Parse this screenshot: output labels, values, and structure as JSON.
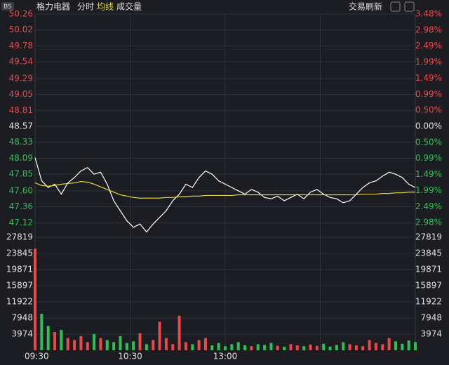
{
  "header": {
    "badge": "BS",
    "stock": "格力电器",
    "tabs": [
      "分时",
      "均线",
      "成交量"
    ],
    "refresh": "交易刷新"
  },
  "chart_data": {
    "type": "line",
    "series": [
      {
        "name": "分时",
        "color": "#ffffff",
        "values": [
          48.1,
          47.75,
          47.65,
          47.7,
          47.55,
          47.72,
          47.8,
          47.9,
          47.95,
          47.85,
          47.88,
          47.7,
          47.45,
          47.3,
          47.15,
          47.05,
          47.1,
          46.98,
          47.1,
          47.2,
          47.3,
          47.45,
          47.55,
          47.7,
          47.65,
          47.8,
          47.9,
          47.85,
          47.75,
          47.7,
          47.65,
          47.6,
          47.55,
          47.62,
          47.58,
          47.5,
          47.48,
          47.52,
          47.45,
          47.5,
          47.55,
          47.48,
          47.58,
          47.62,
          47.55,
          47.5,
          47.48,
          47.42,
          47.45,
          47.55,
          47.65,
          47.72,
          47.75,
          47.82,
          47.88,
          47.85,
          47.8,
          47.7,
          47.65
        ]
      },
      {
        "name": "均线",
        "color": "#e6d43a",
        "values": [
          47.72,
          47.68,
          47.67,
          47.68,
          47.7,
          47.71,
          47.72,
          47.74,
          47.73,
          47.7,
          47.66,
          47.62,
          47.58,
          47.54,
          47.52,
          47.5,
          47.49,
          47.49,
          47.49,
          47.49,
          47.5,
          47.5,
          47.51,
          47.51,
          47.52,
          47.52,
          47.53,
          47.53,
          47.53,
          47.53,
          47.53,
          47.54,
          47.54,
          47.54,
          47.54,
          47.54,
          47.54,
          47.54,
          47.54,
          47.54,
          47.54,
          47.54,
          47.54,
          47.54,
          47.54,
          47.54,
          47.54,
          47.54,
          47.54,
          47.54,
          47.55,
          47.55,
          47.55,
          47.56,
          47.56,
          47.57,
          47.57,
          47.58,
          47.58
        ]
      }
    ],
    "ylim": [
      46.88,
      50.26
    ],
    "yticks": [
      50.26,
      50.02,
      49.78,
      49.54,
      49.29,
      49.05,
      48.81,
      48.57,
      48.33,
      48.09,
      47.85,
      {
        "value": 47.6,
        "label": "47.60"
      },
      47.36,
      47.12
    ],
    "y2lim": [
      -3.48,
      3.48
    ],
    "y2ticks": [
      {
        "value": 3.48,
        "label": "3.48%"
      },
      {
        "value": 2.98,
        "label": "2.98%"
      },
      {
        "value": 2.49,
        "label": "2.49%"
      },
      {
        "value": 1.99,
        "label": "1.99%"
      },
      {
        "value": 1.49,
        "label": "1.49%"
      },
      {
        "value": 0.99,
        "label": "0.99%"
      },
      {
        "value": 0.5,
        "label": "0.50%"
      },
      {
        "value": 0,
        "label": "0.00%"
      },
      {
        "value": -0.5,
        "label": "0.50%"
      },
      {
        "value": -0.99,
        "label": "0.99%"
      },
      {
        "value": -1.49,
        "label": "1.49%"
      },
      {
        "value": -1.99,
        "label": "1.99%"
      },
      {
        "value": -2.49,
        "label": "2.49%"
      },
      {
        "value": -2.98,
        "label": "2.98%"
      }
    ],
    "volume": {
      "values": [
        25000,
        9000,
        6000,
        4500,
        5000,
        3000,
        2500,
        3500,
        2000,
        4000,
        3000,
        2500,
        2000,
        3500,
        1800,
        2200,
        4200,
        1500,
        2500,
        7000,
        3000,
        1500,
        8500,
        2000,
        1500,
        2500,
        3000,
        1200,
        1800,
        1000,
        1500,
        2000,
        1200,
        1000,
        1500,
        1300,
        1800,
        1100,
        900,
        1500,
        1200,
        1000,
        1400,
        1100,
        1600,
        900,
        1300,
        2000,
        1500,
        1200,
        1000,
        2500,
        1800,
        1500,
        3000,
        2200,
        1600,
        2400,
        2000
      ],
      "ylim": [
        0,
        27819
      ],
      "yticks": [
        27819,
        23845,
        19871,
        15897,
        11922,
        7948,
        3974
      ]
    },
    "xtick_labels": [
      "09:30",
      "10:30",
      "13:00"
    ]
  }
}
